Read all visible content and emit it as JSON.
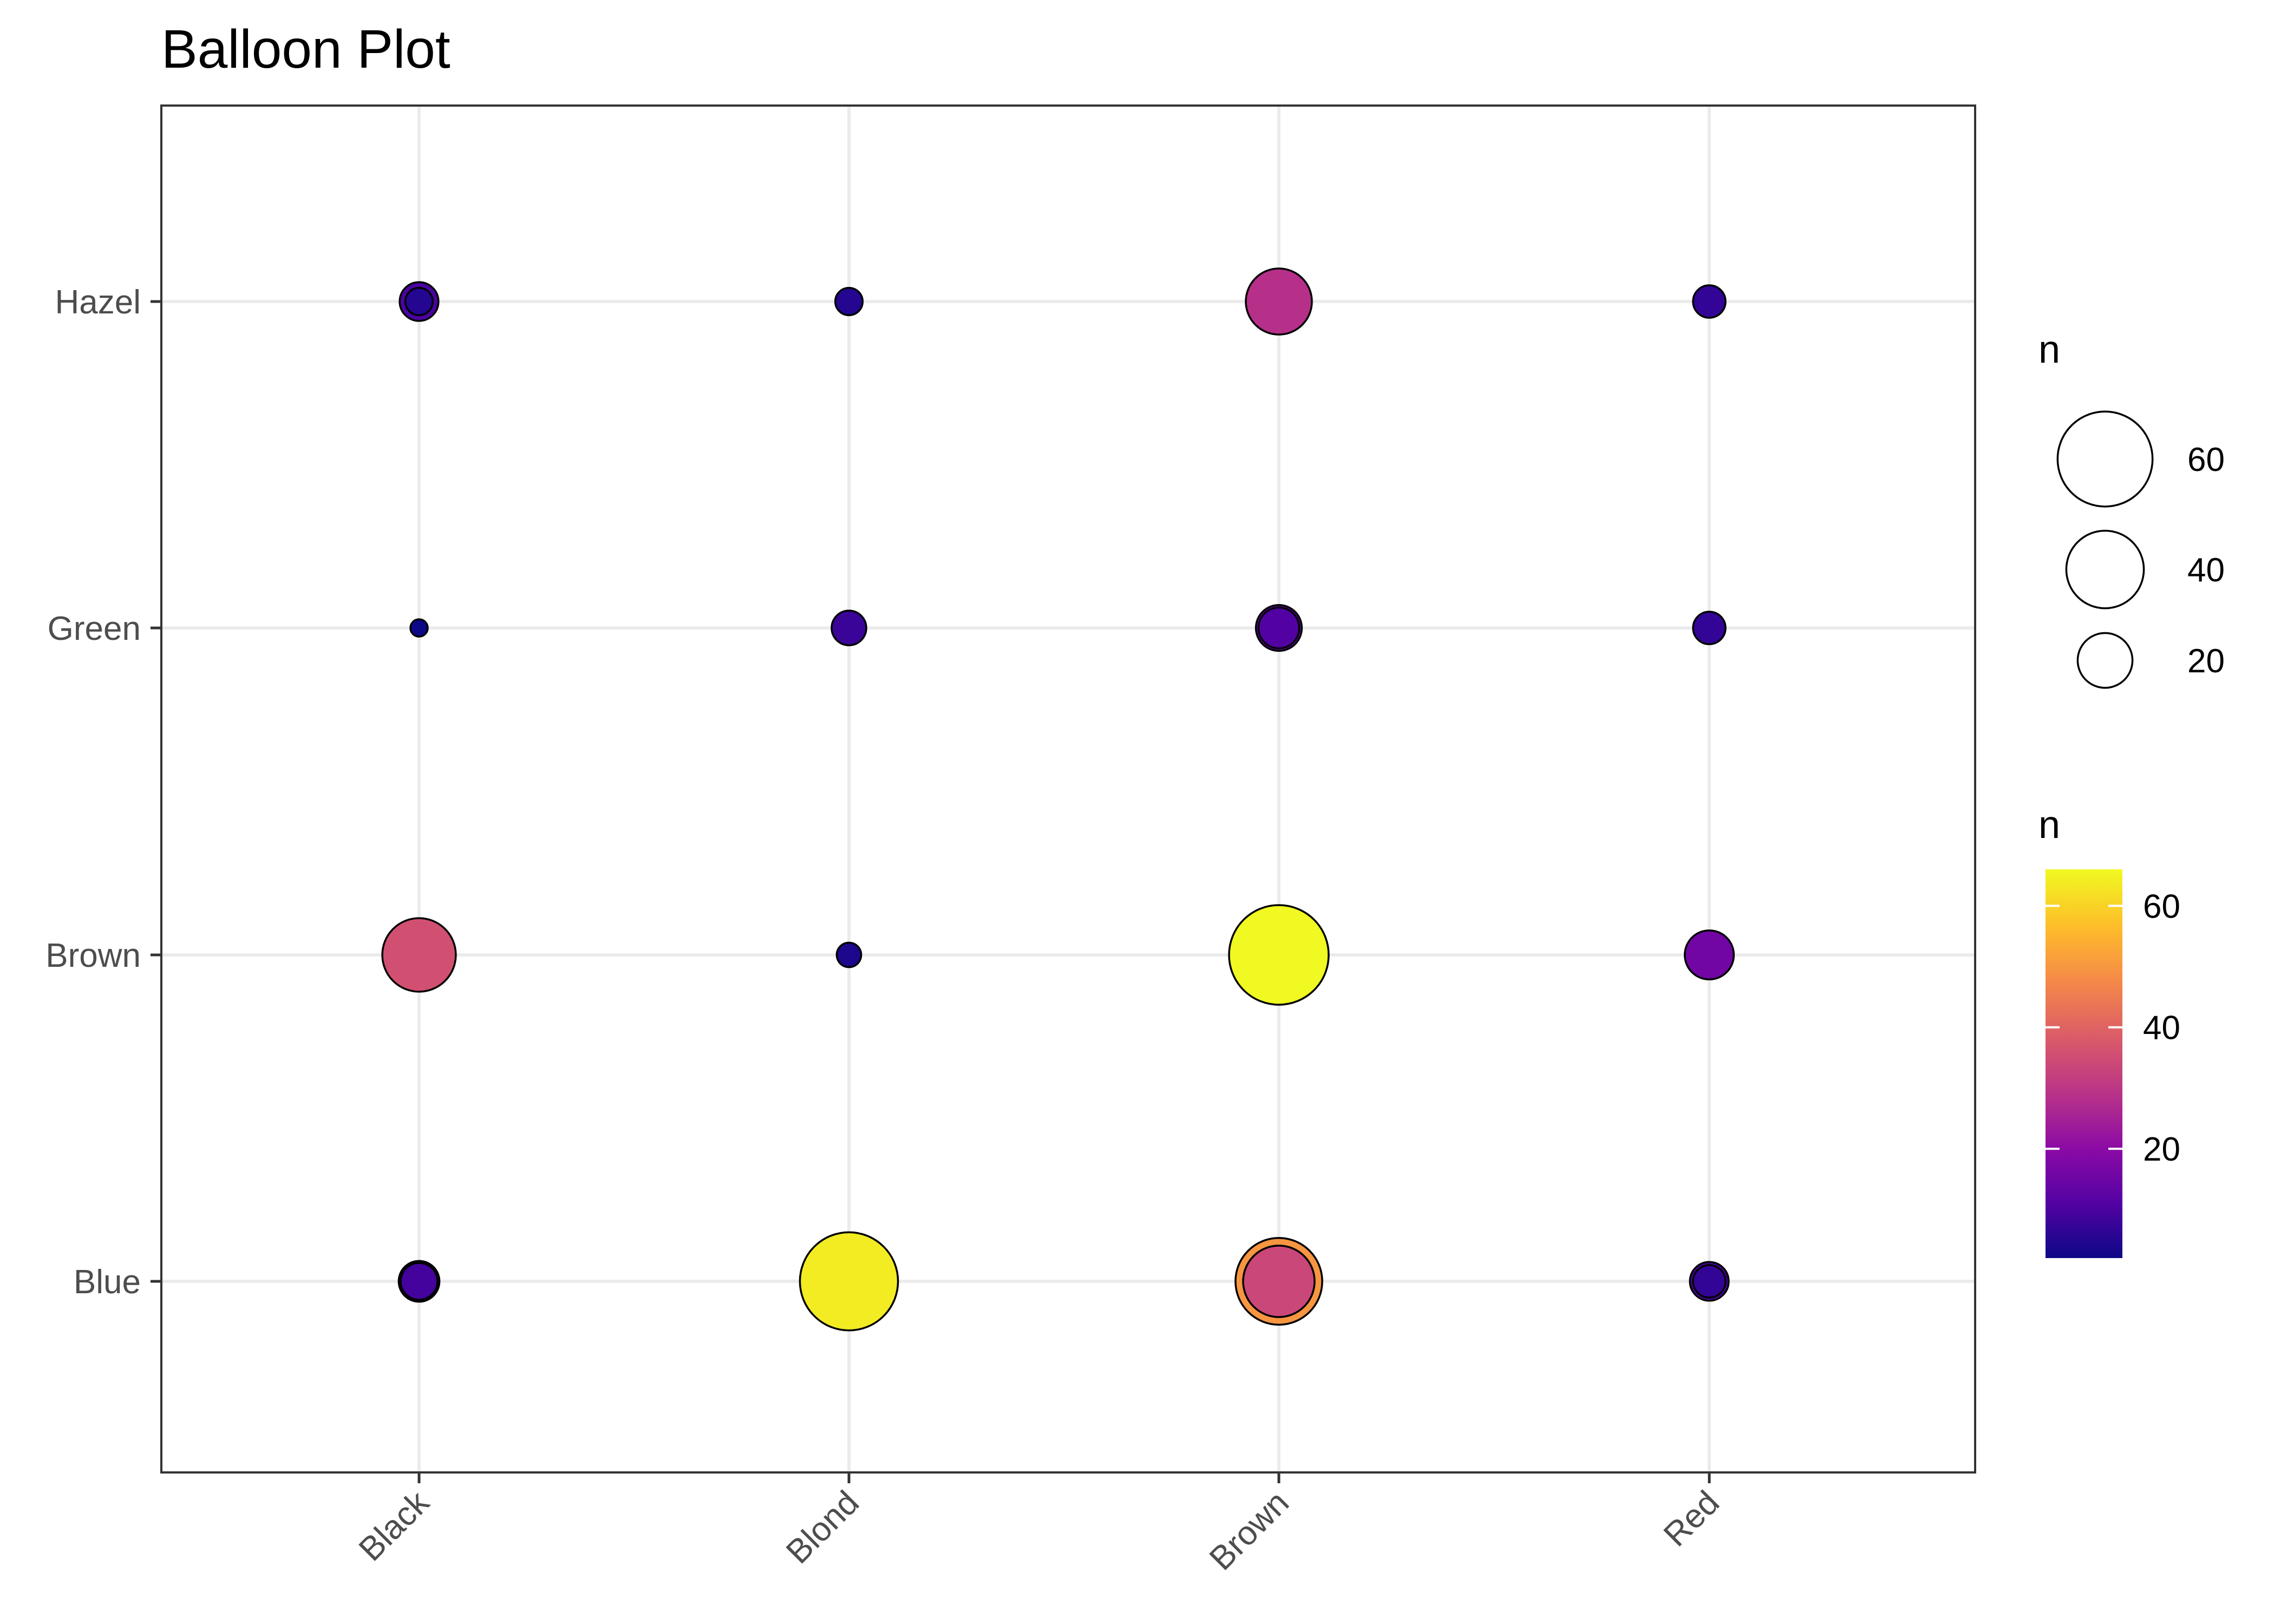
{
  "chart_data": {
    "type": "scatter",
    "title": "Balloon Plot",
    "xlabel": "",
    "ylabel": "",
    "x_categories": [
      "Black",
      "Blond",
      "Brown",
      "Red"
    ],
    "y_categories": [
      "Blue",
      "Brown",
      "Green",
      "Hazel"
    ],
    "grid": true,
    "legend": {
      "placement": "right",
      "size": {
        "title": "n",
        "breaks": [
          20,
          40,
          60
        ]
      },
      "color": {
        "title": "n",
        "breaks": [
          20,
          40,
          60
        ],
        "range": [
          2,
          66
        ],
        "palette": "plasma"
      }
    },
    "points": [
      {
        "x": "Black",
        "y": "Hazel",
        "n": 10
      },
      {
        "x": "Black",
        "y": "Hazel",
        "n": 5
      },
      {
        "x": "Blond",
        "y": "Hazel",
        "n": 5
      },
      {
        "x": "Brown",
        "y": "Hazel",
        "n": 29
      },
      {
        "x": "Red",
        "y": "Hazel",
        "n": 7
      },
      {
        "x": "Black",
        "y": "Green",
        "n": 2
      },
      {
        "x": "Blond",
        "y": "Green",
        "n": 8
      },
      {
        "x": "Brown",
        "y": "Green",
        "n": 14
      },
      {
        "x": "Brown",
        "y": "Green",
        "n": 11
      },
      {
        "x": "Red",
        "y": "Green",
        "n": 7
      },
      {
        "x": "Black",
        "y": "Brown",
        "n": 36
      },
      {
        "x": "Blond",
        "y": "Brown",
        "n": 4
      },
      {
        "x": "Brown",
        "y": "Brown",
        "n": 66
      },
      {
        "x": "Red",
        "y": "Brown",
        "n": 16
      },
      {
        "x": "Black",
        "y": "Blue",
        "n": 11
      },
      {
        "x": "Black",
        "y": "Blue",
        "n": 9
      },
      {
        "x": "Blond",
        "y": "Blue",
        "n": 64
      },
      {
        "x": "Brown",
        "y": "Blue",
        "n": 50
      },
      {
        "x": "Brown",
        "y": "Blue",
        "n": 34
      },
      {
        "x": "Red",
        "y": "Blue",
        "n": 10
      },
      {
        "x": "Red",
        "y": "Blue",
        "n": 7
      }
    ]
  }
}
